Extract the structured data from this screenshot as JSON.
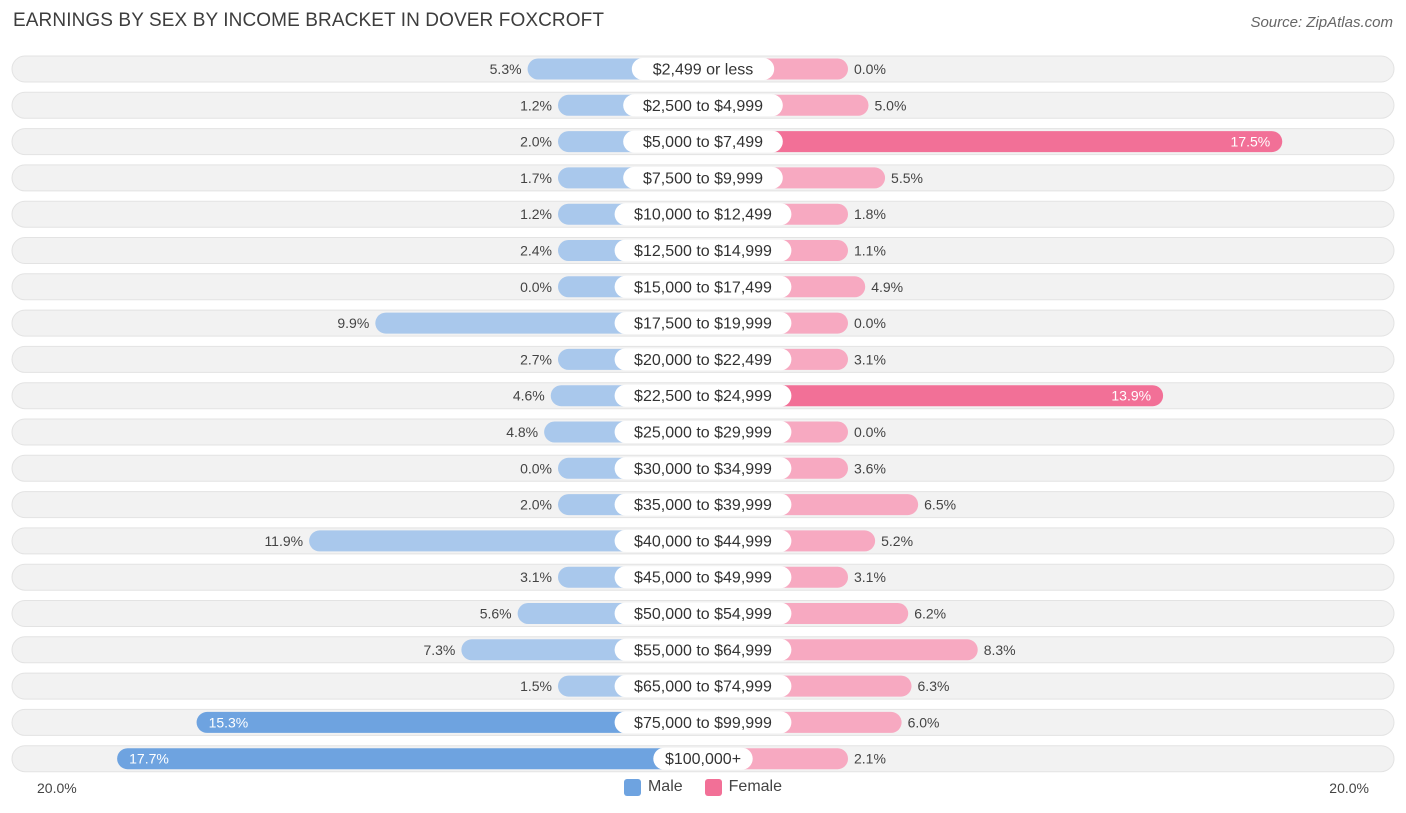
{
  "title": "EARNINGS BY SEX BY INCOME BRACKET IN DOVER FOXCROFT",
  "source": "Source: ZipAtlas.com",
  "colors": {
    "male": "#6ea3e0",
    "male_light": "#a9c8ec",
    "female": "#f27097",
    "female_light": "#f7a9c1",
    "row_bg": "#f2f2f2"
  },
  "chart_data": {
    "type": "bar",
    "orientation": "horizontal-diverging",
    "title": "EARNINGS BY SEX BY INCOME BRACKET IN DOVER FOXCROFT",
    "categories": [
      "$2,499 or less",
      "$2,500 to $4,999",
      "$5,000 to $7,499",
      "$7,500 to $9,999",
      "$10,000 to $12,499",
      "$12,500 to $14,999",
      "$15,000 to $17,499",
      "$17,500 to $19,999",
      "$20,000 to $22,499",
      "$22,500 to $24,999",
      "$25,000 to $29,999",
      "$30,000 to $34,999",
      "$35,000 to $39,999",
      "$40,000 to $44,999",
      "$45,000 to $49,999",
      "$50,000 to $54,999",
      "$55,000 to $64,999",
      "$65,000 to $74,999",
      "$75,000 to $99,999",
      "$100,000+"
    ],
    "series": [
      {
        "name": "Male",
        "values": [
          5.3,
          1.2,
          2.0,
          1.7,
          1.2,
          2.4,
          0.0,
          9.9,
          2.7,
          4.6,
          4.8,
          0.0,
          2.0,
          11.9,
          3.1,
          5.6,
          7.3,
          1.5,
          15.3,
          17.7
        ]
      },
      {
        "name": "Female",
        "values": [
          0.0,
          5.0,
          17.5,
          5.5,
          1.8,
          1.1,
          4.9,
          0.0,
          3.1,
          13.9,
          0.0,
          3.6,
          6.5,
          5.2,
          3.1,
          6.2,
          8.3,
          6.3,
          6.0,
          2.1
        ]
      }
    ],
    "value_labels": {
      "male": [
        "5.3%",
        "1.2%",
        "2.0%",
        "1.7%",
        "1.2%",
        "2.4%",
        "0.0%",
        "9.9%",
        "2.7%",
        "4.6%",
        "4.8%",
        "0.0%",
        "2.0%",
        "11.9%",
        "3.1%",
        "5.6%",
        "7.3%",
        "1.5%",
        "15.3%",
        "17.7%"
      ],
      "female": [
        "0.0%",
        "5.0%",
        "17.5%",
        "5.5%",
        "1.8%",
        "1.1%",
        "4.9%",
        "0.0%",
        "3.1%",
        "13.9%",
        "0.0%",
        "3.6%",
        "6.5%",
        "5.2%",
        "3.1%",
        "6.2%",
        "8.3%",
        "6.3%",
        "6.0%",
        "2.1%"
      ]
    },
    "xlim": [
      -20,
      20
    ],
    "axis_labels": {
      "left": "20.0%",
      "right": "20.0%"
    },
    "legend": [
      "Male",
      "Female"
    ],
    "legend_position": "bottom-center"
  }
}
